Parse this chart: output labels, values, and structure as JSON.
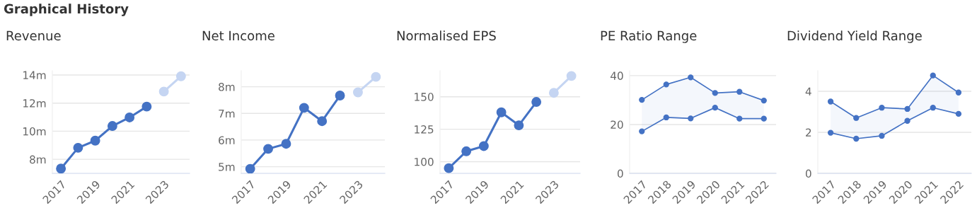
{
  "chart_data": [
    {
      "type": "line",
      "title": "Revenue",
      "annotations": [
        "Graphical History"
      ],
      "marker": "circle",
      "grid": "y",
      "legend": false,
      "xlim": [
        2016.5,
        2024.5
      ],
      "xticks": [
        2017,
        2019,
        2021,
        2023
      ],
      "ylim": [
        7.0,
        14.3
      ],
      "yticks": [
        {
          "value": 8,
          "label": "8m"
        },
        {
          "value": 10,
          "label": "10m"
        },
        {
          "value": 12,
          "label": "12m"
        },
        {
          "value": 14,
          "label": "14m"
        }
      ],
      "series": [
        {
          "color": "#4472c4",
          "x": [
            2017,
            2018,
            2019,
            2020,
            2021,
            2022
          ],
          "values": [
            7.34,
            8.82,
            9.33,
            10.37,
            10.98,
            11.75
          ]
        },
        {
          "color": "#c5d5f2",
          "x": [
            2023,
            2024
          ],
          "values": [
            12.82,
            13.91
          ]
        }
      ]
    },
    {
      "type": "line",
      "title": "Net Income",
      "marker": "circle",
      "grid": "y",
      "legend": false,
      "xlim": [
        2016.5,
        2024.5
      ],
      "xticks": [
        2017,
        2019,
        2021,
        2023
      ],
      "ylim": [
        4.75,
        8.6
      ],
      "yticks": [
        {
          "value": 5,
          "label": "5m"
        },
        {
          "value": 6,
          "label": "6m"
        },
        {
          "value": 7,
          "label": "7m"
        },
        {
          "value": 8,
          "label": "8m"
        }
      ],
      "series": [
        {
          "color": "#4472c4",
          "x": [
            2017,
            2018,
            2019,
            2020,
            2021,
            2022
          ],
          "values": [
            4.92,
            5.67,
            5.86,
            7.21,
            6.71,
            7.67
          ]
        },
        {
          "color": "#c5d5f2",
          "x": [
            2023,
            2024
          ],
          "values": [
            7.79,
            8.37
          ]
        }
      ]
    },
    {
      "type": "line",
      "title": "Normalised EPS",
      "marker": "circle",
      "grid": "y",
      "legend": false,
      "xlim": [
        2016.5,
        2024.5
      ],
      "xticks": [
        2017,
        2019,
        2021,
        2023
      ],
      "ylim": [
        91,
        170
      ],
      "yticks": [
        100,
        125,
        150
      ],
      "series": [
        {
          "color": "#4472c4",
          "x": [
            2017,
            2018,
            2019,
            2020,
            2021,
            2022
          ],
          "values": [
            95,
            108,
            112,
            138,
            128,
            146
          ]
        },
        {
          "color": "#c5d5f2",
          "x": [
            2023,
            2024
          ],
          "values": [
            153,
            166
          ]
        }
      ]
    },
    {
      "type": "line",
      "title": "PE Ratio Range",
      "marker": "circle",
      "grid": "y",
      "legend": false,
      "categories": [
        "2017",
        "2018",
        "2019",
        "2020",
        "2021",
        "2022"
      ],
      "ylim": [
        0,
        42
      ],
      "yticks": [
        0,
        20,
        40
      ],
      "series": [
        {
          "color": "#4472c4",
          "values": [
            17.2,
            22.9,
            22.5,
            26.9,
            22.4,
            22.4
          ]
        },
        {
          "color": "#4472c4",
          "values": [
            30.1,
            36.4,
            39.3,
            32.9,
            33.4,
            29.8
          ],
          "lower": [
            17.2,
            22.9,
            22.5,
            26.9,
            22.4,
            22.4
          ],
          "upper": [
            30.1,
            36.4,
            39.3,
            32.9,
            33.4,
            29.8
          ]
        }
      ]
    },
    {
      "type": "line",
      "title": "Dividend Yield Range",
      "marker": "circle",
      "grid": "y",
      "legend": false,
      "categories": [
        "2017",
        "2018",
        "2019",
        "2020",
        "2021",
        "2022"
      ],
      "ylim": [
        0,
        5
      ],
      "yticks": [
        0,
        2,
        4
      ],
      "series": [
        {
          "color": "#4472c4",
          "values": [
            1.98,
            1.69,
            1.83,
            2.56,
            3.2,
            2.9
          ]
        },
        {
          "color": "#4472c4",
          "values": [
            3.5,
            2.7,
            3.2,
            3.14,
            4.77,
            3.94
          ],
          "lower": [
            1.98,
            1.69,
            1.83,
            2.56,
            3.2,
            2.9
          ],
          "upper": [
            3.5,
            2.7,
            3.2,
            3.14,
            4.77,
            3.94
          ]
        }
      ]
    }
  ]
}
